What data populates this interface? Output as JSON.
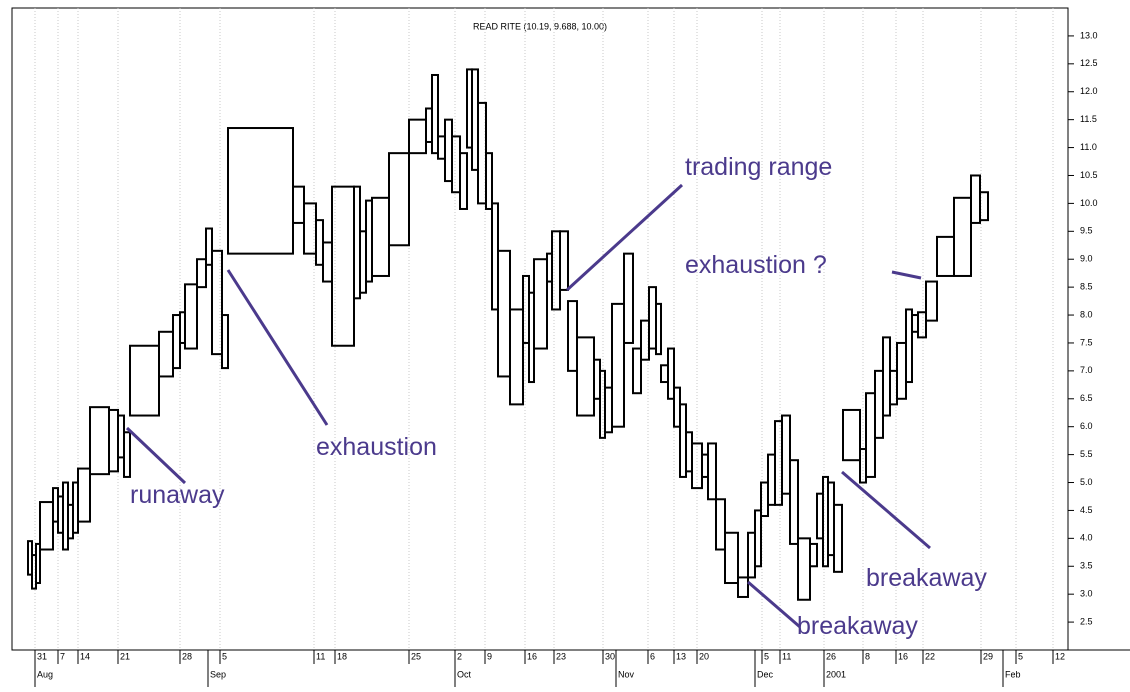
{
  "chart_data": {
    "type": "equivolume",
    "title": "READ RITE (10.19, 9.688, 10.00)",
    "xlim": [
      12,
      1068
    ],
    "ylim": [
      2,
      13.5
    ],
    "yticks": [
      {
        "value": 2.5,
        "label": "2.5"
      },
      {
        "value": 3,
        "label": "3.0"
      },
      {
        "value": 3.5,
        "label": "3.5"
      },
      {
        "value": 4,
        "label": "4.0"
      },
      {
        "value": 4.5,
        "label": "4.5"
      },
      {
        "value": 5,
        "label": "5.0"
      },
      {
        "value": 5.5,
        "label": "5.5"
      },
      {
        "value": 6,
        "label": "6.0"
      },
      {
        "value": 6.5,
        "label": "6.5"
      },
      {
        "value": 7,
        "label": "7.0"
      },
      {
        "value": 7.5,
        "label": "7.5"
      },
      {
        "value": 8,
        "label": "8.0"
      },
      {
        "value": 8.5,
        "label": "8.5"
      },
      {
        "value": 9,
        "label": "9.0"
      },
      {
        "value": 9.5,
        "label": "9.5"
      },
      {
        "value": 10,
        "label": "10.0"
      },
      {
        "value": 10.5,
        "label": "10.5"
      },
      {
        "value": 11,
        "label": "11.0"
      },
      {
        "value": 11.5,
        "label": "11.5"
      },
      {
        "value": 12,
        "label": "12.0"
      },
      {
        "value": 12.5,
        "label": "12.5"
      },
      {
        "value": 13,
        "label": "13.0"
      }
    ],
    "xticks": [
      {
        "value": 35,
        "label": "31"
      },
      {
        "value": 58,
        "label": "7"
      },
      {
        "value": 78,
        "label": "14"
      },
      {
        "value": 118,
        "label": "21"
      },
      {
        "value": 180,
        "label": "28"
      },
      {
        "value": 220,
        "label": "5"
      },
      {
        "value": 314,
        "label": "11"
      },
      {
        "value": 335,
        "label": "18"
      },
      {
        "value": 409,
        "label": "25"
      },
      {
        "value": 455,
        "label": "2"
      },
      {
        "value": 485,
        "label": "9"
      },
      {
        "value": 525,
        "label": "16"
      },
      {
        "value": 554,
        "label": "23"
      },
      {
        "value": 603,
        "label": "30"
      },
      {
        "value": 648,
        "label": "6"
      },
      {
        "value": 674,
        "label": "13"
      },
      {
        "value": 697,
        "label": "20"
      },
      {
        "value": 762,
        "label": "5"
      },
      {
        "value": 780,
        "label": "11"
      },
      {
        "value": 824,
        "label": "26"
      },
      {
        "value": 863,
        "label": "8"
      },
      {
        "value": 896,
        "label": "16"
      },
      {
        "value": 923,
        "label": "22"
      },
      {
        "value": 981,
        "label": "29"
      },
      {
        "value": 1016,
        "label": "5"
      },
      {
        "value": 1053,
        "label": "12"
      }
    ],
    "month_ticks": [
      {
        "value": 35,
        "label": "Aug"
      },
      {
        "value": 208,
        "label": "Sep"
      },
      {
        "value": 455,
        "label": "Oct"
      },
      {
        "value": 616,
        "label": "Nov"
      },
      {
        "value": 755,
        "label": "Dec"
      },
      {
        "value": 824,
        "label": "2001"
      },
      {
        "value": 1003,
        "label": "Feb"
      }
    ],
    "grid": true,
    "series": [
      {
        "color": "#000000",
        "x0": [
          28,
          32,
          36,
          40,
          53,
          58,
          63,
          68,
          73,
          78,
          90,
          109,
          118,
          124,
          130,
          159,
          173,
          180,
          185,
          197,
          206,
          212,
          222,
          228,
          293,
          304,
          316,
          323,
          332,
          354,
          360,
          366,
          372,
          389,
          409,
          426,
          432,
          438,
          445,
          452,
          460,
          467,
          472,
          478,
          486,
          492,
          498,
          510,
          523,
          529,
          534,
          547,
          552,
          560,
          568,
          577,
          594,
          600,
          605,
          612,
          624,
          633,
          641,
          649,
          656,
          661,
          668,
          674,
          680,
          686,
          692,
          702,
          708,
          716,
          725,
          738,
          748,
          755,
          761,
          768,
          775,
          782,
          790,
          798,
          810,
          817,
          823,
          828,
          834,
          843,
          860,
          866,
          875,
          883,
          890,
          897,
          906,
          912,
          918,
          926,
          937,
          954,
          971,
          980
        ],
        "x1": [
          32,
          36,
          40,
          53,
          58,
          63,
          68,
          73,
          78,
          90,
          109,
          118,
          124,
          130,
          159,
          173,
          180,
          185,
          197,
          206,
          212,
          222,
          228,
          293,
          304,
          316,
          323,
          332,
          354,
          360,
          366,
          372,
          389,
          409,
          426,
          432,
          438,
          445,
          452,
          460,
          467,
          472,
          478,
          486,
          492,
          498,
          510,
          523,
          529,
          534,
          547,
          552,
          560,
          568,
          577,
          594,
          600,
          605,
          612,
          624,
          633,
          641,
          649,
          656,
          661,
          668,
          674,
          680,
          686,
          692,
          702,
          708,
          716,
          725,
          738,
          748,
          755,
          761,
          768,
          775,
          782,
          790,
          798,
          810,
          817,
          823,
          828,
          834,
          842,
          860,
          866,
          875,
          883,
          890,
          897,
          906,
          912,
          918,
          926,
          937,
          954,
          971,
          980,
          988
        ],
        "high": [
          3.95,
          3.7,
          3.9,
          4.65,
          4.9,
          4.75,
          5.0,
          4.6,
          5.0,
          5.25,
          6.35,
          6.3,
          6.2,
          5.9,
          7.45,
          7.7,
          8.0,
          8.05,
          8.55,
          9.0,
          9.55,
          9.15,
          8.0,
          11.35,
          10.3,
          10.0,
          9.7,
          9.3,
          10.3,
          10.3,
          9.5,
          10.05,
          10.1,
          10.9,
          11.5,
          11.7,
          12.3,
          11.2,
          11.5,
          11.2,
          10.9,
          12.4,
          12.4,
          11.8,
          10.9,
          10.0,
          9.15,
          8.1,
          8.7,
          8.4,
          9.0,
          9.1,
          9.5,
          9.5,
          8.25,
          7.6,
          7.2,
          7.0,
          6.7,
          8.2,
          9.1,
          7.4,
          7.9,
          8.5,
          8.2,
          7.1,
          7.4,
          6.7,
          6.4,
          5.9,
          5.7,
          5.5,
          5.7,
          4.7,
          4.1,
          3.3,
          4.1,
          4.5,
          5.0,
          5.5,
          6.1,
          6.2,
          5.4,
          4.0,
          3.9,
          4.8,
          5.1,
          5.0,
          4.6,
          6.3,
          5.6,
          6.6,
          7.0,
          7.6,
          7.0,
          7.5,
          8.1,
          8.0,
          8.05,
          8.6,
          9.4,
          10.1,
          10.5,
          10.2
        ],
        "low": [
          3.35,
          3.1,
          3.2,
          3.8,
          4.3,
          4.1,
          3.8,
          4.0,
          4.1,
          4.3,
          5.15,
          5.2,
          5.45,
          5.1,
          6.2,
          6.9,
          7.05,
          7.5,
          7.4,
          8.5,
          8.9,
          7.3,
          7.05,
          9.1,
          9.65,
          9.1,
          8.9,
          8.6,
          7.45,
          8.3,
          8.4,
          8.6,
          8.7,
          9.25,
          10.9,
          11.1,
          10.9,
          10.8,
          10.4,
          10.2,
          9.9,
          11.0,
          10.6,
          10.0,
          9.9,
          8.1,
          6.9,
          6.4,
          7.5,
          6.8,
          7.4,
          8.6,
          8.1,
          8.45,
          7.0,
          6.2,
          6.5,
          5.8,
          5.9,
          6.0,
          7.5,
          6.6,
          7.2,
          7.4,
          7.3,
          6.8,
          6.5,
          6.0,
          5.1,
          5.2,
          4.9,
          5.1,
          4.7,
          3.8,
          3.2,
          2.95,
          3.3,
          3.5,
          4.4,
          4.6,
          4.6,
          4.8,
          3.9,
          2.9,
          3.5,
          4.0,
          3.5,
          3.7,
          3.4,
          5.4,
          5.0,
          5.1,
          5.8,
          6.2,
          6.4,
          6.5,
          6.8,
          7.7,
          7.6,
          7.9,
          8.7,
          8.7,
          9.65,
          9.7
        ]
      }
    ],
    "annotations": [
      {
        "text": "runaway"
      },
      {
        "text": "exhaustion"
      },
      {
        "text": "trading range"
      },
      {
        "text": "exhaustion ?"
      },
      {
        "text": "breakaway"
      },
      {
        "text": "breakaway"
      }
    ]
  }
}
